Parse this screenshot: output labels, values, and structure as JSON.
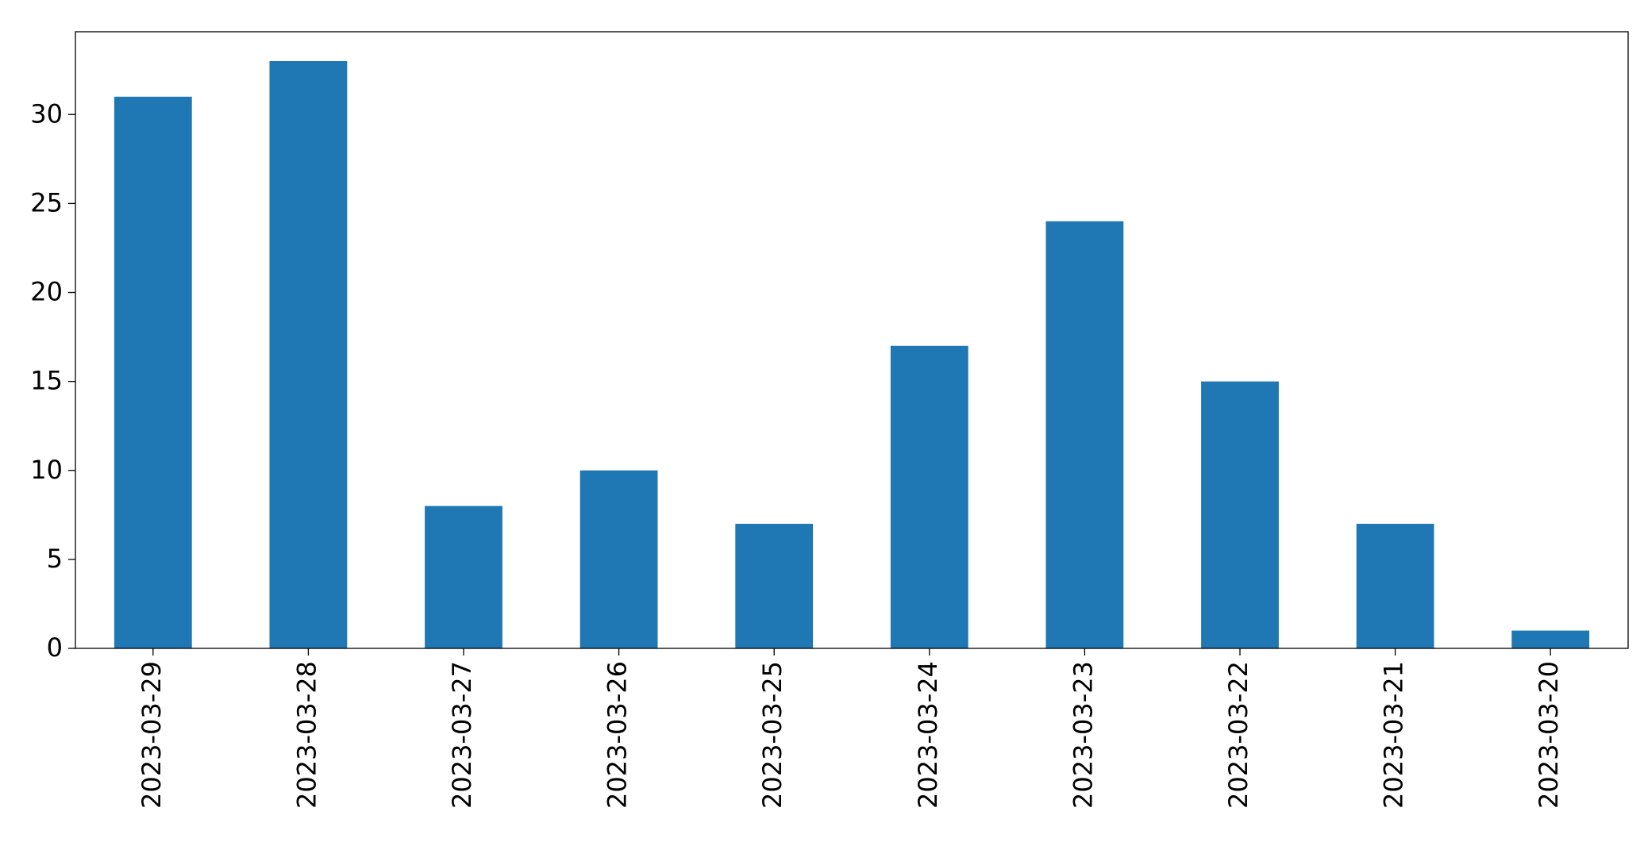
{
  "chart_data": {
    "type": "bar",
    "categories": [
      "2023-03-29",
      "2023-03-28",
      "2023-03-27",
      "2023-03-26",
      "2023-03-25",
      "2023-03-24",
      "2023-03-23",
      "2023-03-22",
      "2023-03-21",
      "2023-03-20"
    ],
    "values": [
      31,
      33,
      8,
      10,
      7,
      17,
      24,
      15,
      7,
      1
    ],
    "color": "#1f77b4",
    "ylim": [
      0,
      34.65
    ],
    "yticks": [
      0,
      5,
      10,
      15,
      20,
      25,
      30
    ],
    "grid": false
  }
}
